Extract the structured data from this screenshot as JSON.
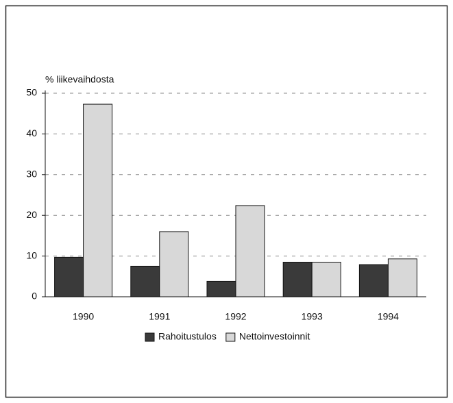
{
  "chart_data": {
    "type": "bar",
    "y_label": "% liikevaihdosta",
    "categories": [
      "1990",
      "1991",
      "1992",
      "1993",
      "1994"
    ],
    "series": [
      {
        "name": "Rahoitustulos",
        "color": "#3a3a3a",
        "values": [
          9.7,
          7.5,
          3.8,
          8.5,
          7.9
        ]
      },
      {
        "name": "Nettoinvestoinnit",
        "color": "#d8d8d8",
        "values": [
          47.3,
          16.0,
          22.4,
          8.5,
          9.3
        ]
      }
    ],
    "ylim": [
      0,
      50
    ],
    "yticks": [
      0,
      10,
      20,
      30,
      40,
      50
    ],
    "grid": true,
    "legend": "bottom"
  }
}
